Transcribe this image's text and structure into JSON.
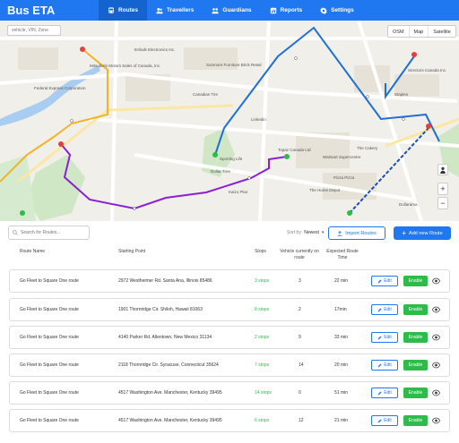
{
  "app": {
    "title": "Bus ETA"
  },
  "nav": {
    "items": [
      {
        "label": "Routes",
        "icon": "bus-icon",
        "active": true
      },
      {
        "label": "Travellers",
        "icon": "users-icon",
        "active": false
      },
      {
        "label": "Guardians",
        "icon": "guardians-icon",
        "active": false
      },
      {
        "label": "Reports",
        "icon": "reports-icon",
        "active": false
      },
      {
        "label": "Settings",
        "icon": "gear-icon",
        "active": false
      }
    ]
  },
  "map": {
    "search_placeholder": "vehicle, VIN, Zone",
    "modes": [
      "OSM",
      "Map",
      "Satellite"
    ],
    "labels": {
      "l1": "Federal Express Corporation",
      "l2": "Mitsubishi Motors Sales of Canada, Inc.",
      "l3": "Enbulk Electronics Inc.",
      "l4": "Sunmore Furniture Brick Retail",
      "l5": "Canadian Tire",
      "l6": "Linkedin",
      "l7": "Topaz Canada Ltd",
      "l8": "Sporting Life",
      "l9": "Dollar Tree",
      "l10": "The Home Depot",
      "l11": "Walmart Supercentre",
      "l12": "The Cakery",
      "l13": "Staples",
      "l14": "Sirectors Canada Inc.",
      "l15": "Pizza Pizza",
      "l16": "Kaizo Plus",
      "l17": "Dollarama"
    },
    "zoom_in": "+",
    "zoom_out": "−"
  },
  "toolbar": {
    "search_placeholder": "Search for Routes...",
    "sort_label": "Sort by:",
    "sort_value": "Newest",
    "import_label": "Import Routes",
    "add_label": "Add new Route"
  },
  "table": {
    "headers": {
      "route": "Route Name",
      "start": "Starting Point",
      "stops": "Stops",
      "vehicle": "Vehicle currently on route",
      "time": "Expected Route Time"
    },
    "edit_label": "Edit",
    "enable_label": "Enable",
    "rows": [
      {
        "route": "Go Fleet to Square One route",
        "start": "2972 Westheimer Rd. Santa Ana, Illinois 85486",
        "stops": "3 stops",
        "vehicle": "3",
        "time": "22 min"
      },
      {
        "route": "Go Fleet to Square One route",
        "start": "1901 Thornridge Cir. Shiloh, Hawaii 81063",
        "stops": "8 stops",
        "vehicle": "2",
        "time": "17min"
      },
      {
        "route": "Go Fleet to Square One route",
        "start": "4140 Parker Rd. Allentown, New Mexico 31134",
        "stops": "2 stops",
        "vehicle": "9",
        "time": "33 min"
      },
      {
        "route": "Go Fleet to Square One route",
        "start": "2118 Thornridge Cir. Syracuse, Connecticut 35624",
        "stops": "7 stops",
        "vehicle": "14",
        "time": "20 min"
      },
      {
        "route": "Go Fleet to Square One route",
        "start": "4517 Washington Ave. Manchester, Kentucky 39495",
        "stops": "14 stops",
        "vehicle": "0",
        "time": "51 min"
      },
      {
        "route": "Go Fleet to Square One route",
        "start": "4517 Washington Ave. Manchester, Kentucky 39495",
        "stops": "6 stops",
        "vehicle": "12",
        "time": "21 min"
      }
    ]
  },
  "colors": {
    "primary": "#1f78f0",
    "success": "#2dbb4a",
    "route_orange": "#f0b429",
    "route_purple": "#8a1fd6",
    "route_blue": "#1f6fd6"
  }
}
